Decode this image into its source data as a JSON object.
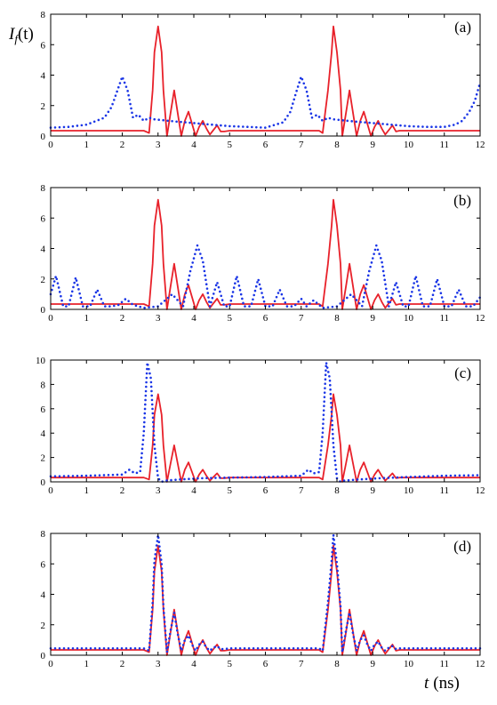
{
  "figure": {
    "ylabel": {
      "main": "I",
      "sub": "f",
      "rest": "(t)"
    },
    "xlabel": {
      "var": "t",
      "unit": "(ns)"
    }
  },
  "colors": {
    "solid": "#e8212a",
    "dotted": "#1a35e6",
    "axis": "#000000"
  },
  "chart_data": [
    {
      "type": "line",
      "panel_label": "(a)",
      "xlim": [
        0,
        12
      ],
      "ylim": [
        0,
        8
      ],
      "xticks": [
        "0",
        "1",
        "2",
        "3",
        "4",
        "5",
        "6",
        "7",
        "8",
        "9",
        "10",
        "11",
        "12"
      ],
      "yticks": [
        "0",
        "2",
        "4",
        "6",
        "8"
      ],
      "series": [
        {
          "style": "solid",
          "color": "#e8212a",
          "x": [
            0,
            2,
            2.6,
            2.75,
            2.85,
            2.9,
            3.0,
            3.1,
            3.15,
            3.25,
            3.35,
            3.45,
            3.55,
            3.65,
            3.75,
            3.85,
            3.95,
            4.05,
            4.15,
            4.25,
            4.35,
            4.45,
            4.55,
            4.65,
            4.75,
            4.85,
            5.0,
            6,
            7.5,
            7.6,
            7.75,
            7.85,
            7.9,
            8.0,
            8.1,
            8.15,
            8.25,
            8.35,
            8.45,
            8.55,
            8.65,
            8.75,
            8.85,
            8.95,
            9.05,
            9.15,
            9.25,
            9.35,
            9.45,
            9.55,
            9.65,
            9.75,
            9.85,
            10.0,
            11,
            12
          ],
          "y": [
            0.35,
            0.35,
            0.35,
            0.2,
            3.0,
            5.5,
            7.2,
            5.5,
            3.0,
            0.0,
            1.5,
            3.0,
            1.5,
            0.0,
            1.0,
            1.6,
            0.8,
            0.0,
            0.6,
            1.0,
            0.5,
            0.1,
            0.4,
            0.7,
            0.3,
            0.3,
            0.35,
            0.35,
            0.35,
            0.2,
            3.0,
            5.5,
            7.2,
            5.5,
            3.0,
            0.0,
            1.5,
            3.0,
            1.5,
            0.0,
            1.0,
            1.6,
            0.8,
            0.0,
            0.6,
            1.0,
            0.5,
            0.1,
            0.4,
            0.7,
            0.3,
            0.35,
            0.35,
            0.35,
            0.35,
            0.35
          ]
        },
        {
          "style": "dotted",
          "color": "#1a35e6",
          "x": [
            0,
            0.5,
            1.0,
            1.5,
            1.7,
            1.85,
            2.0,
            2.15,
            2.3,
            2.45,
            2.6,
            2.75,
            2.9,
            3.5,
            4.0,
            4.5,
            5.0,
            5.5,
            6.0,
            6.5,
            6.7,
            6.85,
            7.0,
            7.15,
            7.3,
            7.45,
            7.6,
            7.75,
            7.9,
            8.5,
            9.0,
            9.5,
            10.0,
            10.5,
            11.0,
            11.3,
            11.5,
            11.7,
            11.85,
            12.0
          ],
          "y": [
            0.55,
            0.6,
            0.75,
            1.2,
            1.9,
            2.9,
            3.9,
            3.0,
            1.2,
            1.4,
            1.0,
            1.2,
            1.1,
            0.95,
            0.85,
            0.75,
            0.65,
            0.6,
            0.55,
            0.9,
            1.6,
            2.8,
            3.9,
            3.0,
            1.2,
            1.4,
            1.0,
            1.2,
            1.1,
            0.95,
            0.85,
            0.75,
            0.65,
            0.6,
            0.6,
            0.75,
            1.0,
            1.6,
            2.3,
            3.5
          ]
        }
      ]
    },
    {
      "type": "line",
      "panel_label": "(b)",
      "xlim": [
        0,
        12
      ],
      "ylim": [
        0,
        8
      ],
      "xticks": [
        "0",
        "1",
        "2",
        "3",
        "4",
        "5",
        "6",
        "7",
        "8",
        "9",
        "10",
        "11",
        "12"
      ],
      "yticks": [
        "0",
        "2",
        "4",
        "6",
        "8"
      ],
      "series": [
        {
          "style": "solid",
          "color": "#e8212a",
          "x": [
            0,
            2,
            2.6,
            2.75,
            2.85,
            2.9,
            3.0,
            3.1,
            3.15,
            3.25,
            3.35,
            3.45,
            3.55,
            3.65,
            3.75,
            3.85,
            3.95,
            4.05,
            4.15,
            4.25,
            4.35,
            4.45,
            4.55,
            4.65,
            4.75,
            4.85,
            5.0,
            6,
            7.5,
            7.6,
            7.75,
            7.85,
            7.9,
            8.0,
            8.1,
            8.15,
            8.25,
            8.35,
            8.45,
            8.55,
            8.65,
            8.75,
            8.85,
            8.95,
            9.05,
            9.15,
            9.25,
            9.35,
            9.45,
            9.55,
            9.65,
            9.75,
            9.85,
            10.0,
            11,
            12
          ],
          "y": [
            0.35,
            0.35,
            0.35,
            0.2,
            3.0,
            5.5,
            7.2,
            5.5,
            3.0,
            0.0,
            1.5,
            3.0,
            1.5,
            0.0,
            1.0,
            1.6,
            0.8,
            0.0,
            0.6,
            1.0,
            0.5,
            0.1,
            0.4,
            0.7,
            0.3,
            0.3,
            0.35,
            0.35,
            0.35,
            0.2,
            3.0,
            5.5,
            7.2,
            5.5,
            3.0,
            0.0,
            1.5,
            3.0,
            1.5,
            0.0,
            1.0,
            1.6,
            0.8,
            0.0,
            0.6,
            1.0,
            0.5,
            0.1,
            0.4,
            0.7,
            0.3,
            0.35,
            0.35,
            0.35,
            0.35,
            0.35
          ]
        },
        {
          "style": "dotted",
          "color": "#1a35e6",
          "x": [
            0,
            0.15,
            0.35,
            0.5,
            0.7,
            0.9,
            1.1,
            1.3,
            1.5,
            1.7,
            1.9,
            2.1,
            2.3,
            2.6,
            3.0,
            3.4,
            3.7,
            3.9,
            4.1,
            4.25,
            4.45,
            4.65,
            4.85,
            5.0,
            5.2,
            5.4,
            5.6,
            5.8,
            6.0,
            6.2,
            6.4,
            6.6,
            6.8,
            7.0,
            7.15,
            7.35,
            7.6,
            8.0,
            8.4,
            8.7,
            8.9,
            9.1,
            9.25,
            9.45,
            9.65,
            9.85,
            10.0,
            10.2,
            10.4,
            10.6,
            10.8,
            11.0,
            11.2,
            11.4,
            11.6,
            11.8,
            12.0
          ],
          "y": [
            1.0,
            2.2,
            0.2,
            0.2,
            2.1,
            0.2,
            0.2,
            1.3,
            0.2,
            0.2,
            0.3,
            0.7,
            0.3,
            0.1,
            0.2,
            1.0,
            0.2,
            2.5,
            4.2,
            3.2,
            0.2,
            1.8,
            0.2,
            0.2,
            2.2,
            0.2,
            0.2,
            2.0,
            0.2,
            0.2,
            1.3,
            0.2,
            0.2,
            0.7,
            0.2,
            0.6,
            0.1,
            0.2,
            1.0,
            0.2,
            2.5,
            4.2,
            3.2,
            0.2,
            1.8,
            0.2,
            0.2,
            2.2,
            0.2,
            0.2,
            2.0,
            0.2,
            0.2,
            1.3,
            0.2,
            0.2,
            0.8
          ]
        }
      ]
    },
    {
      "type": "line",
      "panel_label": "(c)",
      "xlim": [
        0,
        12
      ],
      "ylim": [
        0,
        10
      ],
      "xticks": [
        "0",
        "1",
        "2",
        "3",
        "4",
        "5",
        "6",
        "7",
        "8",
        "9",
        "10",
        "11",
        "12"
      ],
      "yticks": [
        "0",
        "2",
        "4",
        "6",
        "8",
        "10"
      ],
      "series": [
        {
          "style": "solid",
          "color": "#e8212a",
          "x": [
            0,
            2,
            2.6,
            2.75,
            2.85,
            2.9,
            3.0,
            3.1,
            3.15,
            3.25,
            3.35,
            3.45,
            3.55,
            3.65,
            3.75,
            3.85,
            3.95,
            4.05,
            4.15,
            4.25,
            4.35,
            4.45,
            4.55,
            4.65,
            4.75,
            4.85,
            5.0,
            6,
            7.5,
            7.6,
            7.75,
            7.85,
            7.9,
            8.0,
            8.1,
            8.15,
            8.25,
            8.35,
            8.45,
            8.55,
            8.65,
            8.75,
            8.85,
            8.95,
            9.05,
            9.15,
            9.25,
            9.35,
            9.45,
            9.55,
            9.65,
            9.75,
            9.85,
            10.0,
            11,
            12
          ],
          "y": [
            0.35,
            0.35,
            0.35,
            0.2,
            3.0,
            5.5,
            7.2,
            5.5,
            3.0,
            0.0,
            1.5,
            3.0,
            1.5,
            0.0,
            1.0,
            1.6,
            0.8,
            0.0,
            0.6,
            1.0,
            0.5,
            0.1,
            0.4,
            0.7,
            0.3,
            0.3,
            0.35,
            0.35,
            0.35,
            0.2,
            3.0,
            5.5,
            7.2,
            5.5,
            3.0,
            0.0,
            1.5,
            3.0,
            1.5,
            0.0,
            1.0,
            1.6,
            0.8,
            0.0,
            0.6,
            1.0,
            0.5,
            0.1,
            0.4,
            0.7,
            0.3,
            0.35,
            0.35,
            0.35,
            0.35,
            0.35
          ]
        },
        {
          "style": "dotted",
          "color": "#1a35e6",
          "x": [
            0,
            1.0,
            2.0,
            2.2,
            2.35,
            2.5,
            2.6,
            2.7,
            2.8,
            2.9,
            3.0,
            3.1,
            3.2,
            3.6,
            4.2,
            5.0,
            6.0,
            7.0,
            7.2,
            7.35,
            7.5,
            7.6,
            7.7,
            7.8,
            7.9,
            8.0,
            8.1,
            8.2,
            8.6,
            9.2,
            10.0,
            11.0,
            12.0
          ],
          "y": [
            0.45,
            0.5,
            0.6,
            1.0,
            0.7,
            0.8,
            4.0,
            9.8,
            8.5,
            3.0,
            0.3,
            0.0,
            0.1,
            0.2,
            0.3,
            0.35,
            0.4,
            0.5,
            1.0,
            0.7,
            0.8,
            4.0,
            9.8,
            8.5,
            3.0,
            0.3,
            0.0,
            0.1,
            0.2,
            0.3,
            0.4,
            0.5,
            0.55
          ]
        }
      ]
    },
    {
      "type": "line",
      "panel_label": "(d)",
      "xlim": [
        0,
        12
      ],
      "ylim": [
        0,
        8
      ],
      "xticks": [
        "0",
        "1",
        "2",
        "3",
        "4",
        "5",
        "6",
        "7",
        "8",
        "9",
        "10",
        "11",
        "12"
      ],
      "yticks": [
        "0",
        "2",
        "4",
        "6",
        "8"
      ],
      "series": [
        {
          "style": "solid",
          "color": "#e8212a",
          "x": [
            0,
            2,
            2.6,
            2.75,
            2.85,
            2.9,
            3.0,
            3.1,
            3.15,
            3.25,
            3.35,
            3.45,
            3.55,
            3.65,
            3.75,
            3.85,
            3.95,
            4.05,
            4.15,
            4.25,
            4.35,
            4.45,
            4.55,
            4.65,
            4.75,
            4.85,
            5.0,
            6,
            7.5,
            7.6,
            7.75,
            7.85,
            7.9,
            8.0,
            8.1,
            8.15,
            8.25,
            8.35,
            8.45,
            8.55,
            8.65,
            8.75,
            8.85,
            8.95,
            9.05,
            9.15,
            9.25,
            9.35,
            9.45,
            9.55,
            9.65,
            9.75,
            9.85,
            10.0,
            11,
            12
          ],
          "y": [
            0.35,
            0.35,
            0.35,
            0.2,
            3.0,
            5.5,
            7.2,
            5.5,
            3.0,
            0.0,
            1.5,
            3.0,
            1.5,
            0.0,
            1.0,
            1.6,
            0.8,
            0.0,
            0.6,
            1.0,
            0.5,
            0.1,
            0.4,
            0.7,
            0.3,
            0.3,
            0.35,
            0.35,
            0.35,
            0.2,
            3.0,
            5.5,
            7.2,
            5.5,
            3.0,
            0.0,
            1.5,
            3.0,
            1.5,
            0.0,
            1.0,
            1.6,
            0.8,
            0.0,
            0.6,
            1.0,
            0.5,
            0.1,
            0.4,
            0.7,
            0.3,
            0.35,
            0.35,
            0.35,
            0.35,
            0.35
          ]
        },
        {
          "style": "dotted",
          "color": "#1a35e6",
          "x": [
            0,
            2,
            2.6,
            2.75,
            2.85,
            2.9,
            3.0,
            3.1,
            3.15,
            3.25,
            3.35,
            3.45,
            3.55,
            3.65,
            3.75,
            3.85,
            3.95,
            4.05,
            4.15,
            4.25,
            4.35,
            4.45,
            4.55,
            4.65,
            4.75,
            4.85,
            5.0,
            6,
            7.5,
            7.6,
            7.75,
            7.85,
            7.9,
            8.0,
            8.1,
            8.15,
            8.25,
            8.35,
            8.45,
            8.55,
            8.65,
            8.75,
            8.85,
            8.95,
            9.05,
            9.15,
            9.25,
            9.35,
            9.45,
            9.55,
            9.65,
            9.75,
            9.85,
            10.0,
            11,
            12
          ],
          "y": [
            0.45,
            0.45,
            0.45,
            0.3,
            3.5,
            6.2,
            7.9,
            6.0,
            3.2,
            0.2,
            1.6,
            2.8,
            1.4,
            0.3,
            1.0,
            1.3,
            0.7,
            0.3,
            0.7,
            0.9,
            0.5,
            0.3,
            0.5,
            0.6,
            0.4,
            0.4,
            0.45,
            0.45,
            0.45,
            0.3,
            3.5,
            6.2,
            7.9,
            6.0,
            3.2,
            0.2,
            1.6,
            2.8,
            1.4,
            0.3,
            1.0,
            1.3,
            0.7,
            0.3,
            0.7,
            0.9,
            0.5,
            0.3,
            0.5,
            0.6,
            0.4,
            0.45,
            0.45,
            0.45,
            0.45,
            0.45
          ]
        }
      ]
    }
  ]
}
